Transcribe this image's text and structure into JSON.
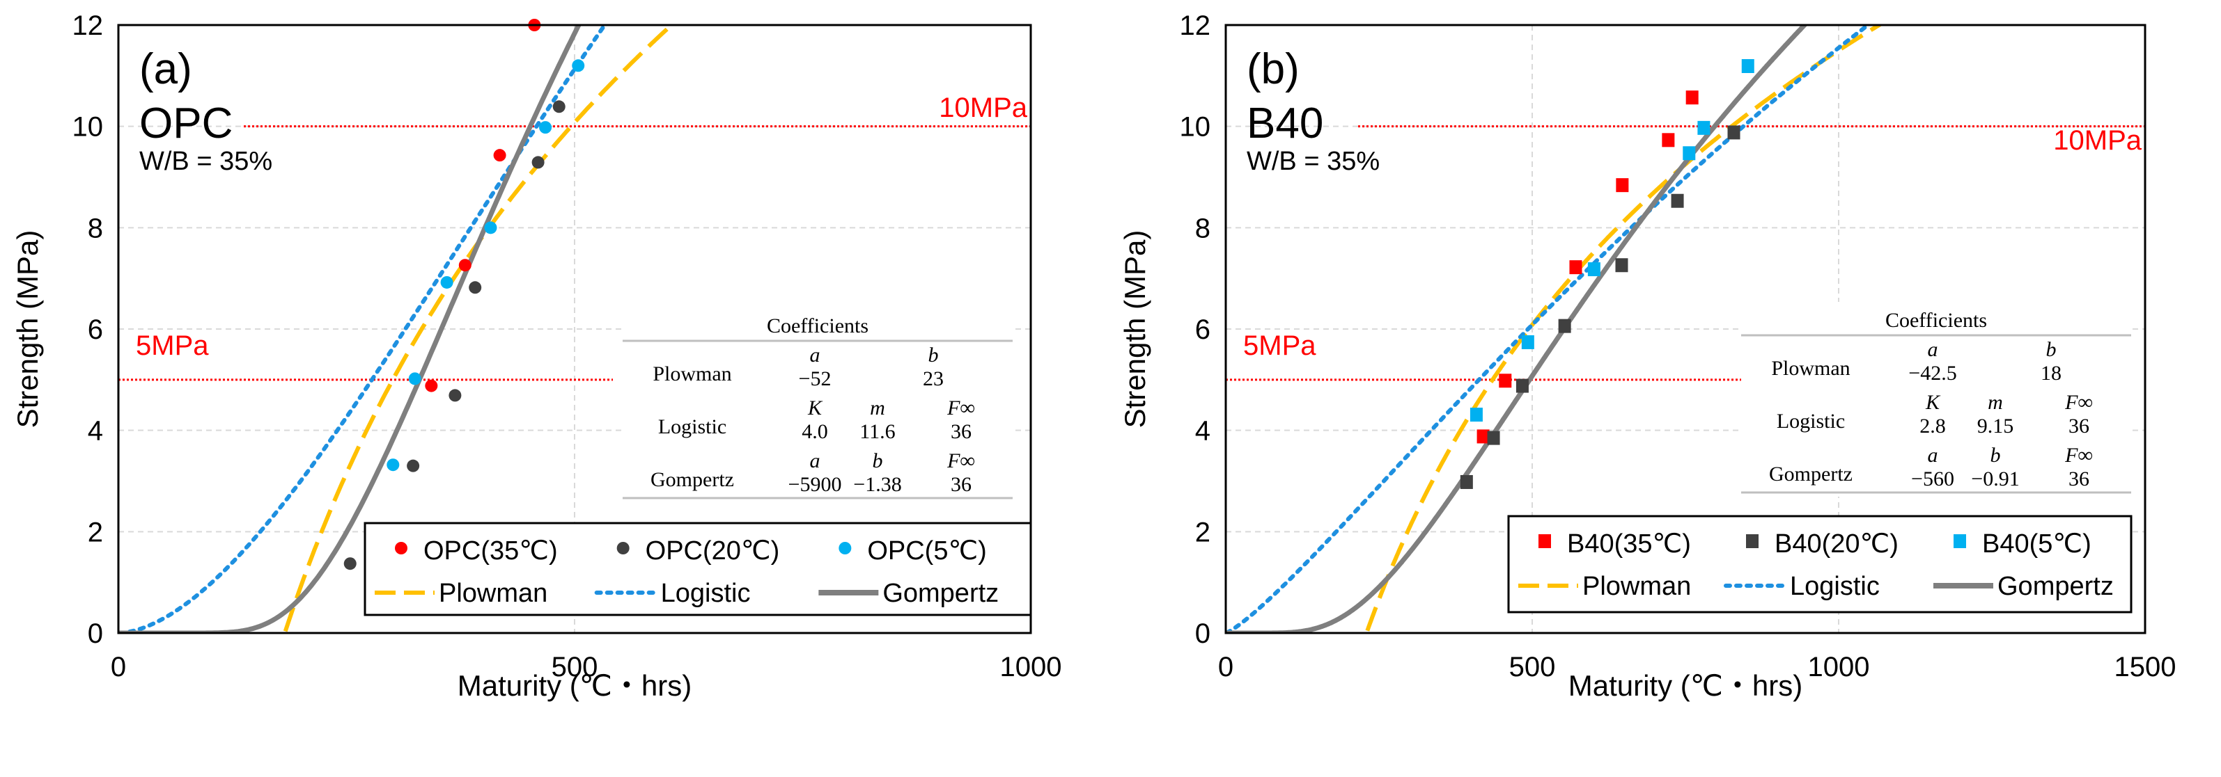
{
  "chart_data": [
    {
      "type": "scatter",
      "panel_label": "(a)",
      "title": "OPC",
      "subtitle": "W/B = 35%",
      "xlabel": "Maturity (℃・hrs)",
      "ylabel": "Strength (MPa)",
      "xlim": [
        0,
        1000
      ],
      "ylim": [
        0,
        12
      ],
      "xticks": [
        0,
        500,
        1000
      ],
      "yticks": [
        0,
        2,
        4,
        6,
        8,
        10,
        12
      ],
      "grid": true,
      "reference_lines": [
        {
          "y": 10,
          "label": "10MPa",
          "color": "#ff0000"
        },
        {
          "y": 5,
          "label": "5MPa",
          "color": "#ff0000"
        }
      ],
      "marker": "circle",
      "series": [
        {
          "name": "OPC(35℃)",
          "color": "#ff0000",
          "points": [
            [
              456,
              12.0
            ],
            [
              418,
              9.43
            ],
            [
              380,
              7.26
            ],
            [
              343,
              4.88
            ]
          ]
        },
        {
          "name": "OPC(20℃)",
          "color": "#404040",
          "points": [
            [
              483,
              10.39
            ],
            [
              460,
              9.29
            ],
            [
              391,
              6.82
            ],
            [
              369,
              4.69
            ],
            [
              323,
              3.3
            ],
            [
              254,
              1.37
            ]
          ]
        },
        {
          "name": "OPC(5℃)",
          "color": "#00b0f0",
          "points": [
            [
              504,
              11.2
            ],
            [
              468,
              9.98
            ],
            [
              408,
              8.0
            ],
            [
              360,
              6.92
            ],
            [
              325,
              5.02
            ],
            [
              301,
              3.32
            ]
          ]
        }
      ],
      "models": [
        {
          "name": "Plowman",
          "color": "#ffc000",
          "style": "dashed",
          "params": {
            "a": -52,
            "b": 23
          }
        },
        {
          "name": "Logistic",
          "color": "#1e90e0",
          "style": "dotted",
          "params": {
            "K": 4.0,
            "m": 11.6,
            "Finf": 36
          }
        },
        {
          "name": "Gompertz",
          "color": "#7f7f7f",
          "style": "solid",
          "params": {
            "a": -5900,
            "b": -1.38,
            "Finf": 36
          }
        }
      ],
      "coefficients_table": {
        "title": "Coefficients",
        "rows": [
          {
            "model": "Plowman",
            "headers": [
              "a",
              "b"
            ],
            "values": [
              "−52",
              "23"
            ]
          },
          {
            "model": "Logistic",
            "headers": [
              "K",
              "m",
              "F∞"
            ],
            "values": [
              "4.0",
              "11.6",
              "36"
            ]
          },
          {
            "model": "Gompertz",
            "headers": [
              "a",
              "b",
              "F∞"
            ],
            "values": [
              "−5900",
              "−1.38",
              "36"
            ]
          }
        ]
      },
      "legend_position": "bottom-right"
    },
    {
      "type": "scatter",
      "panel_label": "(b)",
      "title": "B40",
      "subtitle": "W/B = 35%",
      "xlabel": "Maturity (℃・hrs)",
      "ylabel": "Strength (MPa)",
      "xlim": [
        0,
        1500
      ],
      "ylim": [
        0,
        12
      ],
      "xticks": [
        0,
        500,
        1000,
        1500
      ],
      "yticks": [
        0,
        2,
        4,
        6,
        8,
        10,
        12
      ],
      "grid": true,
      "reference_lines": [
        {
          "y": 10,
          "label": "10MPa",
          "color": "#ff0000"
        },
        {
          "y": 5,
          "label": "5MPa",
          "color": "#ff0000"
        }
      ],
      "marker": "square",
      "series": [
        {
          "name": "B40(35℃)",
          "color": "#ff0000",
          "points": [
            [
              761,
              10.57
            ],
            [
              722,
              9.73
            ],
            [
              647,
              8.84
            ],
            [
              571,
              7.22
            ],
            [
              456,
              4.98
            ],
            [
              420,
              3.88
            ]
          ]
        },
        {
          "name": "B40(20℃)",
          "color": "#404040",
          "points": [
            [
              829,
              9.88
            ],
            [
              737,
              8.53
            ],
            [
              646,
              7.26
            ],
            [
              553,
              6.06
            ],
            [
              484,
              4.88
            ],
            [
              437,
              3.85
            ],
            [
              393,
              2.98
            ]
          ]
        },
        {
          "name": "B40(5℃)",
          "color": "#00b0f0",
          "points": [
            [
              852,
              11.19
            ],
            [
              780,
              9.97
            ],
            [
              756,
              9.47
            ],
            [
              601,
              7.18
            ],
            [
              493,
              5.74
            ],
            [
              409,
              4.31
            ]
          ]
        }
      ],
      "models": [
        {
          "name": "Plowman",
          "color": "#ffc000",
          "style": "dashed",
          "params": {
            "a": -42.5,
            "b": 18
          }
        },
        {
          "name": "Logistic",
          "color": "#1e90e0",
          "style": "dotted",
          "params": {
            "K": 2.8,
            "m": 9.15,
            "Finf": 36
          }
        },
        {
          "name": "Gompertz",
          "color": "#7f7f7f",
          "style": "solid",
          "params": {
            "a": -560,
            "b": -0.91,
            "Finf": 36
          }
        }
      ],
      "coefficients_table": {
        "title": "Coefficients",
        "rows": [
          {
            "model": "Plowman",
            "headers": [
              "a",
              "b"
            ],
            "values": [
              "−42.5",
              "18"
            ]
          },
          {
            "model": "Logistic",
            "headers": [
              "K",
              "m",
              "F∞"
            ],
            "values": [
              "2.8",
              "9.15",
              "36"
            ]
          },
          {
            "model": "Gompertz",
            "headers": [
              "a",
              "b",
              "F∞"
            ],
            "values": [
              "−560",
              "−0.91",
              "36"
            ]
          }
        ]
      },
      "legend_position": "bottom-right"
    }
  ]
}
